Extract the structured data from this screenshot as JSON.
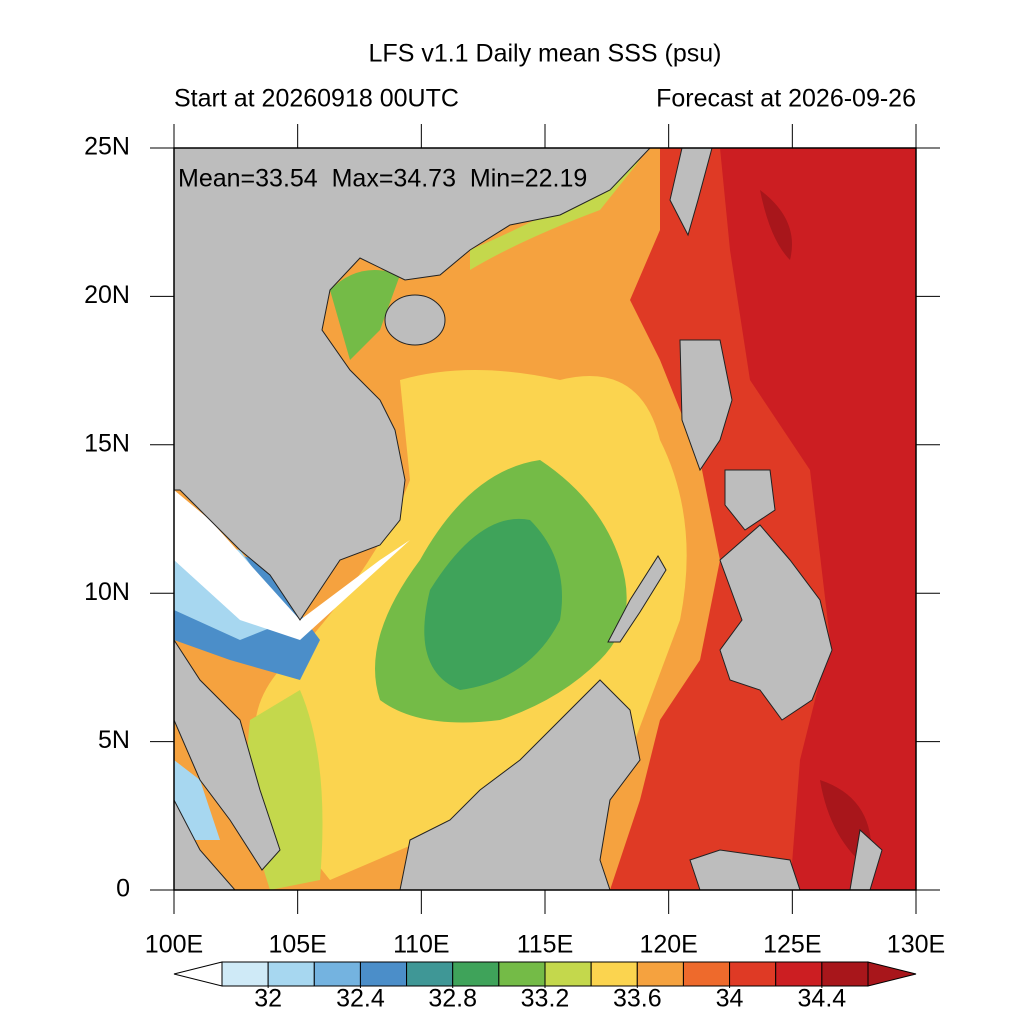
{
  "chart_data": {
    "type": "map",
    "title": "LFS v1.1 Daily mean SSS (psu)",
    "subtitle_left": "Start at 20260918 00UTC",
    "subtitle_right": "Forecast at 2026-09-26",
    "annotation": "Mean=33.54  Max=34.73  Min=22.19",
    "xlim": [
      100,
      130
    ],
    "ylim": [
      0,
      25
    ],
    "xticks": [
      {
        "value": 100,
        "label": "100E"
      },
      {
        "value": 105,
        "label": "105E"
      },
      {
        "value": 110,
        "label": "110E"
      },
      {
        "value": 115,
        "label": "115E"
      },
      {
        "value": 120,
        "label": "120E"
      },
      {
        "value": 125,
        "label": "125E"
      },
      {
        "value": 130,
        "label": "130E"
      }
    ],
    "yticks": [
      0,
      {
        "value": 5,
        "label": "5N"
      },
      {
        "value": 10,
        "label": "10N"
      },
      {
        "value": 15,
        "label": "15N"
      },
      {
        "value": 20,
        "label": "20N"
      },
      {
        "value": 25,
        "label": "25N"
      }
    ],
    "colorbar": {
      "lim": [
        31.8,
        34.6
      ],
      "ticks": [
        32,
        32.4,
        32.8,
        33.2,
        33.6,
        34,
        34.4
      ],
      "colors": [
        "#ffffff",
        "#cfeaf7",
        "#a7d7f0",
        "#74b3e0",
        "#4b8ec9",
        "#3f9796",
        "#3fa35a",
        "#74bb47",
        "#c4d84c",
        "#fbd44f",
        "#f5a23f",
        "#ee6a2c",
        "#df3a25",
        "#cc1e22",
        "#a8161b",
        "#a8161b"
      ]
    }
  }
}
